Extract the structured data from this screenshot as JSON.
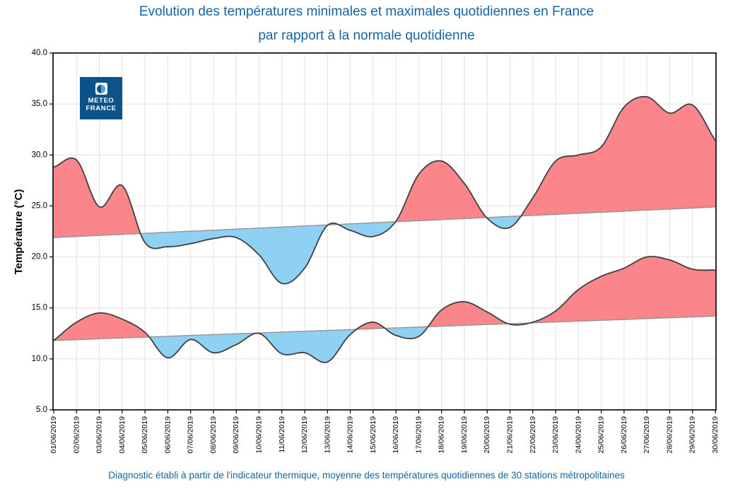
{
  "title": {
    "line1": "Evolution des températures minimales et maximales quotidiennes en France",
    "line2": "par rapport à la normale quotidienne"
  },
  "footer": "Diagnostic établi à partir de l'indicateur thermique, moyenne des températures quotidiennes de 30 stations métropolitaines",
  "logo": {
    "line1": "METEO",
    "line2": "FRANCE",
    "color": "#0d5389"
  },
  "chart_data": {
    "type": "area",
    "title": "Evolution des températures minimales et maximales quotidiennes en France par rapport à la normale quotidienne",
    "xlabel": "",
    "ylabel": "Température (°C)",
    "ylim": [
      5,
      40
    ],
    "yticks": [
      5,
      10,
      15,
      20,
      25,
      30,
      35,
      40
    ],
    "grid": true,
    "legend_position": "none",
    "categories": [
      "01/06/2019",
      "02/06/2019",
      "03/06/2019",
      "04/06/2019",
      "05/06/2019",
      "06/06/2019",
      "07/06/2019",
      "08/06/2019",
      "09/06/2019",
      "10/06/2019",
      "11/06/2019",
      "12/06/2019",
      "13/06/2019",
      "14/06/2019",
      "15/06/2019",
      "16/06/2019",
      "17/06/2019",
      "18/06/2019",
      "19/06/2019",
      "20/06/2019",
      "21/06/2019",
      "22/06/2019",
      "23/06/2019",
      "24/06/2019",
      "25/06/2019",
      "26/06/2019",
      "27/06/2019",
      "28/06/2019",
      "29/06/2019",
      "30/06/2019"
    ],
    "series": [
      {
        "name": "temperature_maximale",
        "values": [
          28.8,
          29.5,
          24.9,
          27.0,
          21.4,
          21.0,
          21.3,
          21.8,
          21.9,
          20.2,
          17.4,
          18.9,
          23.1,
          22.6,
          22.0,
          23.5,
          28.1,
          29.4,
          27.2,
          23.8,
          22.9,
          25.8,
          29.4,
          30.0,
          30.8,
          34.7,
          35.7,
          34.1,
          34.9,
          31.4
        ]
      },
      {
        "name": "normale_maximale",
        "values": [
          21.9,
          22.0,
          22.11,
          22.21,
          22.31,
          22.42,
          22.52,
          22.62,
          22.73,
          22.83,
          22.93,
          23.04,
          23.14,
          23.24,
          23.35,
          23.45,
          23.55,
          23.66,
          23.76,
          23.86,
          23.97,
          24.07,
          24.17,
          24.28,
          24.38,
          24.48,
          24.59,
          24.69,
          24.79,
          24.9
        ]
      },
      {
        "name": "temperature_minimale",
        "values": [
          11.8,
          13.6,
          14.5,
          13.9,
          12.6,
          10.1,
          11.9,
          10.6,
          11.4,
          12.5,
          10.5,
          10.6,
          9.7,
          12.4,
          13.6,
          12.3,
          12.2,
          14.8,
          15.6,
          14.6,
          13.4,
          13.6,
          14.7,
          16.8,
          18.1,
          18.9,
          20.0,
          19.7,
          18.8,
          18.7
        ]
      },
      {
        "name": "normale_minimale",
        "values": [
          11.8,
          11.88,
          11.97,
          12.05,
          12.13,
          12.21,
          12.3,
          12.38,
          12.46,
          12.54,
          12.63,
          12.71,
          12.79,
          12.87,
          12.96,
          13.04,
          13.12,
          13.2,
          13.29,
          13.37,
          13.45,
          13.53,
          13.62,
          13.7,
          13.78,
          13.86,
          13.95,
          14.03,
          14.11,
          14.2
        ]
      }
    ],
    "colors": {
      "above_normal_fill": "#f97075",
      "below_normal_fill": "#7ac9f1",
      "curve_stroke": "#3f3f3f",
      "normal_stroke": "#949494",
      "grid": "#e1e1e1",
      "axis": "#000000",
      "accent_blue": "#1464a5"
    }
  }
}
